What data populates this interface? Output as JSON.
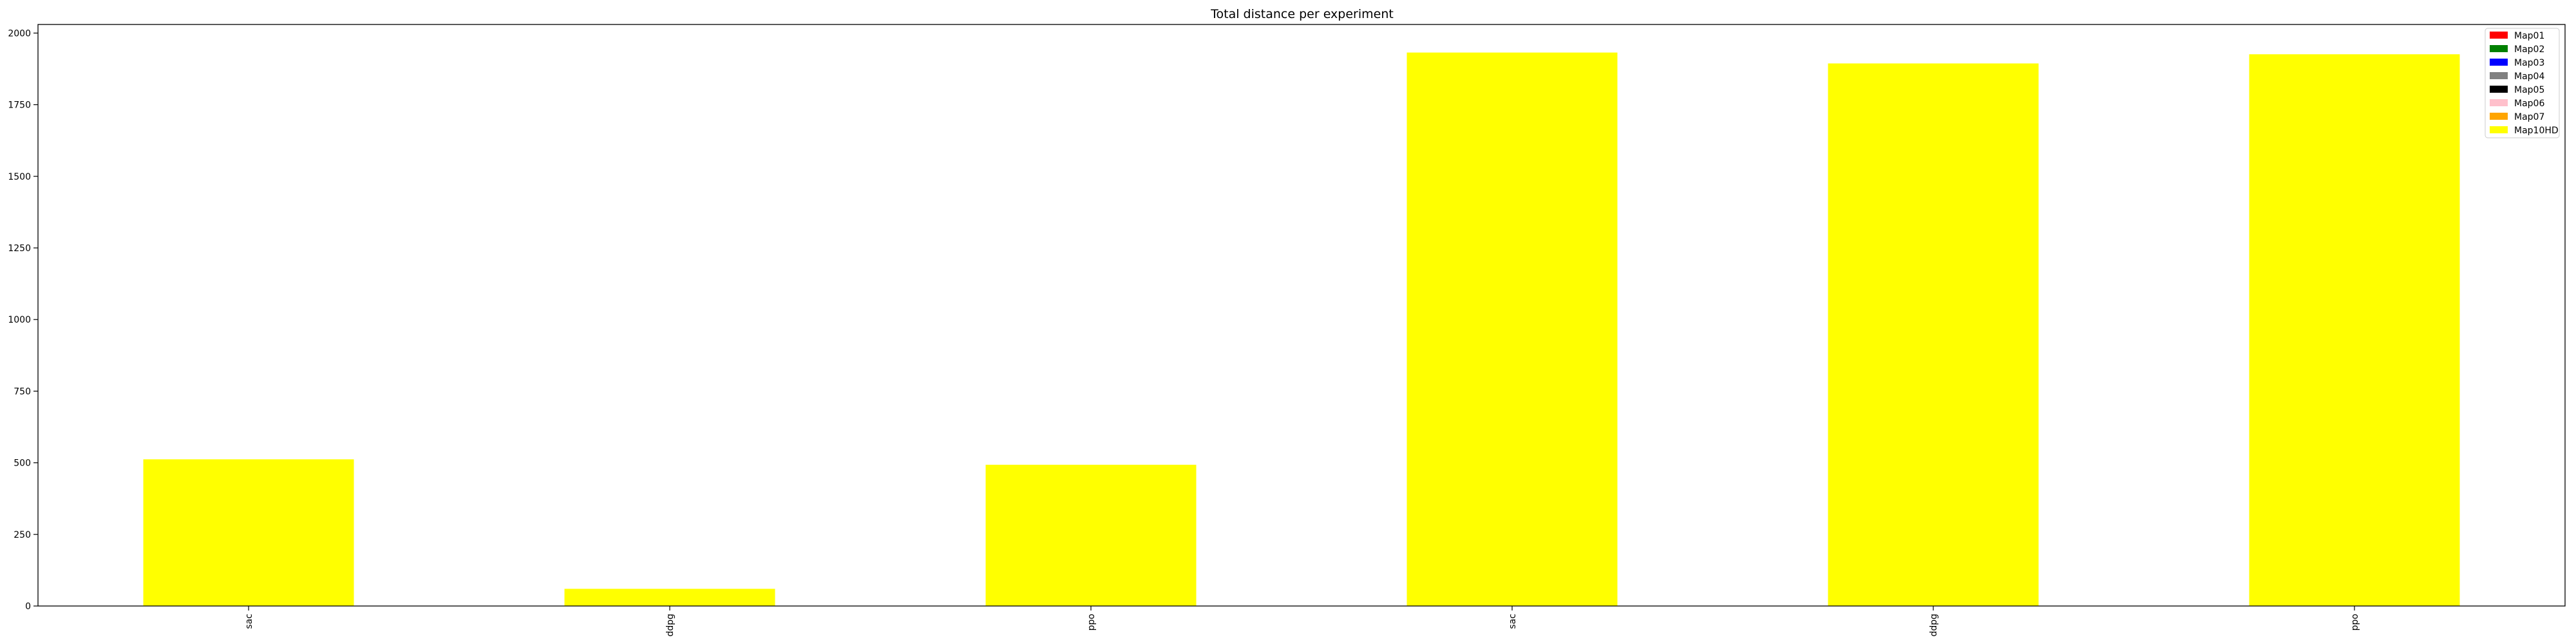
{
  "chart_data": {
    "type": "bar",
    "stacked": true,
    "title": "Total distance per experiment",
    "xlabel": "",
    "ylabel": "",
    "categories": [
      "sac",
      "ddpg",
      "ppo",
      "sac",
      "ddpg",
      "ppo"
    ],
    "series": [
      {
        "name": "Map01",
        "color": "#ff0000",
        "values": [
          0,
          0,
          0,
          0,
          0,
          0
        ]
      },
      {
        "name": "Map02",
        "color": "#008000",
        "values": [
          0,
          0,
          0,
          0,
          0,
          0
        ]
      },
      {
        "name": "Map03",
        "color": "#0000ff",
        "values": [
          0,
          0,
          0,
          0,
          0,
          0
        ]
      },
      {
        "name": "Map04",
        "color": "#808080",
        "values": [
          0,
          0,
          0,
          0,
          0,
          0
        ]
      },
      {
        "name": "Map05",
        "color": "#000000",
        "values": [
          0,
          0,
          0,
          0,
          0,
          0
        ]
      },
      {
        "name": "Map06",
        "color": "#ffc0cb",
        "values": [
          0,
          0,
          0,
          0,
          0,
          0
        ]
      },
      {
        "name": "Map07",
        "color": "#ffa500",
        "values": [
          0,
          0,
          0,
          0,
          0,
          0
        ]
      },
      {
        "name": "Map10HD",
        "color": "#ffff00",
        "values": [
          512,
          60,
          493,
          1932,
          1894,
          1926
        ]
      }
    ],
    "ylim": [
      0,
      2030
    ],
    "yticks": [
      0,
      250,
      500,
      750,
      1000,
      1250,
      1500,
      1750,
      2000
    ],
    "ytick_labels": [
      "0",
      "250",
      "500",
      "750",
      "1000",
      "1250",
      "1500",
      "1750",
      "2000"
    ],
    "grid": false,
    "legend_position": "top-right"
  }
}
